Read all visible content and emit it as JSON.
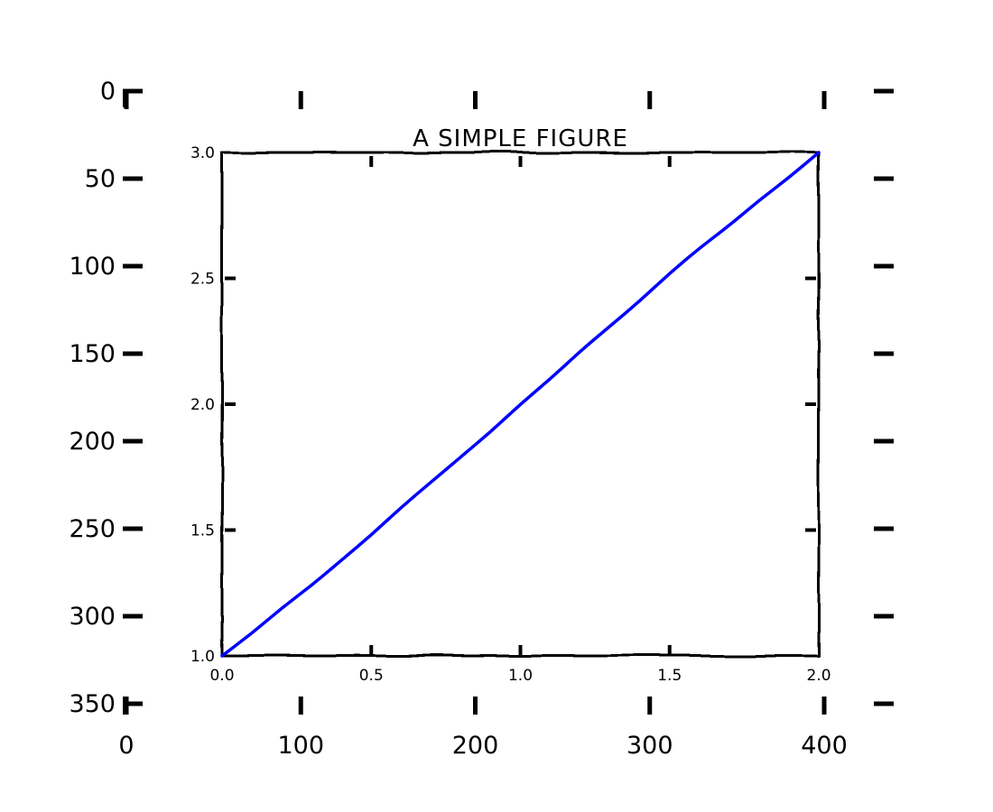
{
  "chart_data": [
    {
      "name": "outer-image-axes",
      "type": "image-axes",
      "x_ticks": [
        0,
        100,
        200,
        300,
        400
      ],
      "y_ticks": [
        0,
        50,
        100,
        150,
        200,
        250,
        300,
        350
      ],
      "xlim": [
        0,
        400
      ],
      "ylim": [
        350,
        0
      ]
    },
    {
      "name": "inner-plot",
      "type": "line",
      "title": "A SIMPLE FIGURE",
      "xlim": [
        0.0,
        2.0
      ],
      "ylim": [
        1.0,
        3.0
      ],
      "x_tick_labels": [
        "0.0",
        "0.5",
        "1.0",
        "1.5",
        "2.0"
      ],
      "y_tick_labels": [
        "1.0",
        "1.5",
        "2.0",
        "2.5",
        "3.0"
      ],
      "grid": false,
      "series": [
        {
          "color": "#0000ff",
          "x": [
            0.0,
            0.1,
            0.2,
            0.3,
            0.4,
            0.5,
            0.6,
            0.7,
            0.8,
            0.9,
            1.0,
            1.1,
            1.2,
            1.3,
            1.4,
            1.5,
            1.6,
            1.7,
            1.8,
            1.9,
            2.0
          ],
          "y": [
            1.0,
            1.09,
            1.19,
            1.28,
            1.38,
            1.48,
            1.59,
            1.69,
            1.79,
            1.89,
            2.0,
            2.1,
            2.21,
            2.31,
            2.41,
            2.52,
            2.62,
            2.71,
            2.81,
            2.9,
            3.0
          ]
        }
      ]
    }
  ]
}
